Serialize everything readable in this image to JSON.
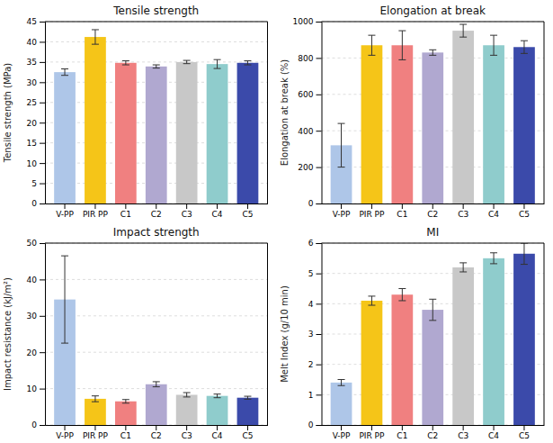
{
  "chart_data": [
    {
      "type": "bar",
      "title": "Tensile strength",
      "ylabel": "Tensile strength (MPa)",
      "categories": [
        "V-PP",
        "PIR PP",
        "C1",
        "C2",
        "C3",
        "C4",
        "C5"
      ],
      "values": [
        32.5,
        41.2,
        34.8,
        33.9,
        35.0,
        34.5,
        34.8
      ],
      "errors": [
        0.8,
        1.8,
        0.5,
        0.4,
        0.4,
        1.1,
        0.5
      ],
      "colors": [
        "#aec6e8",
        "#f5c518",
        "#f08080",
        "#b0a8d0",
        "#c8c8c8",
        "#8fcccc",
        "#3b4aaa"
      ],
      "ylim": [
        0,
        45
      ],
      "yticks": [
        0,
        5,
        10,
        15,
        20,
        25,
        30,
        35,
        40,
        45
      ],
      "grid": true
    },
    {
      "type": "bar",
      "title": "Elongation at break",
      "ylabel": "Elongation at break (%)",
      "categories": [
        "V-PP",
        "PIR PP",
        "C1",
        "C2",
        "C3",
        "C4",
        "C5"
      ],
      "values": [
        320,
        870,
        870,
        830,
        950,
        870,
        860
      ],
      "errors": [
        120,
        55,
        80,
        15,
        35,
        55,
        35
      ],
      "colors": [
        "#aec6e8",
        "#f5c518",
        "#f08080",
        "#b0a8d0",
        "#c8c8c8",
        "#8fcccc",
        "#3b4aaa"
      ],
      "ylim": [
        0,
        1000
      ],
      "yticks": [
        0,
        200,
        400,
        600,
        800,
        1000
      ],
      "grid": true
    },
    {
      "type": "bar",
      "title": "Impact strength",
      "ylabel": "Impact resistance (kJ/m²)",
      "categories": [
        "V-PP",
        "PIR PP",
        "C1",
        "C2",
        "C3",
        "C4",
        "C5"
      ],
      "values": [
        34.5,
        7.2,
        6.5,
        11.2,
        8.3,
        8.0,
        7.5
      ],
      "errors": [
        12.0,
        0.8,
        0.5,
        0.7,
        0.6,
        0.5,
        0.4
      ],
      "colors": [
        "#aec6e8",
        "#f5c518",
        "#f08080",
        "#b0a8d0",
        "#c8c8c8",
        "#8fcccc",
        "#3b4aaa"
      ],
      "ylim": [
        0,
        50
      ],
      "yticks": [
        0,
        10,
        20,
        30,
        40,
        50
      ],
      "grid": true
    },
    {
      "type": "bar",
      "title": "MI",
      "ylabel": "Melt Index (g/10 min)",
      "categories": [
        "V-PP",
        "PIR PP",
        "C1",
        "C2",
        "C3",
        "C4",
        "C5"
      ],
      "values": [
        1.4,
        4.1,
        4.3,
        3.8,
        5.2,
        5.5,
        5.65
      ],
      "errors": [
        0.1,
        0.15,
        0.2,
        0.35,
        0.15,
        0.18,
        0.35
      ],
      "colors": [
        "#aec6e8",
        "#f5c518",
        "#f08080",
        "#b0a8d0",
        "#c8c8c8",
        "#8fcccc",
        "#3b4aaa"
      ],
      "ylim": [
        0,
        6
      ],
      "yticks": [
        0,
        1,
        2,
        3,
        4,
        5,
        6
      ],
      "grid": true
    }
  ]
}
